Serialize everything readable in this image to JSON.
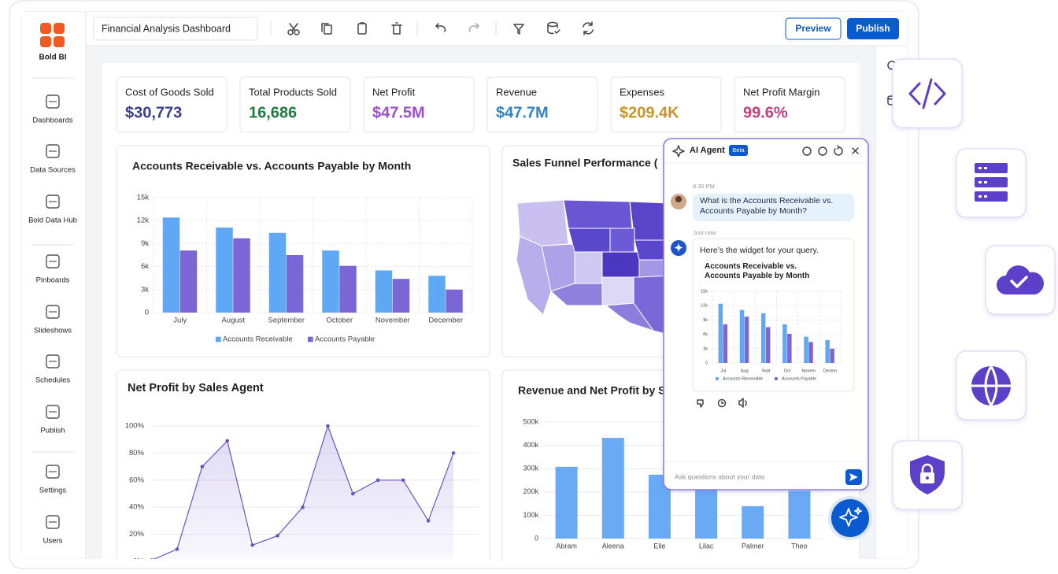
{
  "app": {
    "logo": "Bold BI",
    "nav": [
      "Dashboards",
      "Data Sources",
      "Bold Data Hub",
      "Pinboards",
      "Slideshows",
      "Schedules",
      "Publish",
      "Settings",
      "Users"
    ],
    "dashboard_name": "Financial Analysis Dashboard",
    "buttons": [
      "Preview",
      "Publish"
    ]
  },
  "kpis": [
    {
      "label": "Cost of Goods Sold",
      "value": "$30,773",
      "color": "#3a3f8c"
    },
    {
      "label": "Total Products Sold",
      "value": "16,686",
      "color": "#1f7a3f"
    },
    {
      "label": "Net Profit",
      "value": "$47.5M",
      "color": "#9b4fcf"
    },
    {
      "label": "Revenue",
      "value": "$47.7M",
      "color": "#2f86c6"
    },
    {
      "label": "Expenses",
      "value": "$209.4K",
      "color": "#c8952b"
    },
    {
      "label": "Net Profit Margin",
      "value": "99.6%",
      "color": "#c2407a"
    }
  ],
  "chart_data": [
    {
      "type": "bar",
      "title": "Accounts Receivable vs. Accounts Payable by Month",
      "categories": [
        "July",
        "August",
        "September",
        "October",
        "November",
        "December"
      ],
      "series": [
        {
          "name": "Accounts Receivable",
          "color": "#5ea8f5",
          "values": [
            12400,
            11100,
            10400,
            8100,
            5500,
            4800
          ]
        },
        {
          "name": "Accounts Payable",
          "color": "#7b66d6",
          "values": [
            8100,
            9700,
            7500,
            6100,
            4400,
            3000
          ]
        }
      ],
      "ylim": [
        0,
        15000
      ],
      "yticks": [
        0,
        {
          "value": 3000,
          "label": "3k"
        },
        {
          "value": 6000,
          "label": "6k"
        },
        {
          "value": 9000,
          "label": "9k"
        },
        {
          "value": 12000,
          "label": "12k"
        },
        {
          "value": 15000,
          "label": "15k"
        }
      ],
      "grid": true
    },
    {
      "type": "map",
      "title": "Sales Funnel Performance ("
    },
    {
      "type": "line",
      "title": "Net Profit by Sales Agent",
      "categories": [
        null,
        null,
        null,
        null,
        null,
        null,
        null,
        null,
        null,
        null,
        null,
        null,
        null
      ],
      "values": [
        1,
        9,
        70,
        89,
        12,
        19,
        40,
        100,
        50,
        60,
        60,
        30,
        80
      ],
      "color": "#6a55c2",
      "ylim": [
        0,
        100
      ],
      "yticks": [
        {
          "value": 0,
          "label": "0%"
        },
        {
          "value": 20,
          "label": "20%"
        },
        {
          "value": 40,
          "label": "40%"
        },
        {
          "value": 60,
          "label": "60%"
        },
        {
          "value": 80,
          "label": "80%"
        },
        {
          "value": 100,
          "label": "100%"
        }
      ],
      "grid": true
    },
    {
      "type": "bar",
      "title": "Revenue and Net Profit by S",
      "categories": [
        "Abram",
        "Aleena",
        "Elle",
        "Lilac",
        "Palmer",
        "Theo"
      ],
      "series": [
        {
          "name": null,
          "color": "#6aa9f4",
          "values": [
            308000,
            432000,
            274000,
            215000,
            139000,
            205000
          ]
        }
      ],
      "ylim": [
        0,
        500000
      ],
      "yticks": [
        0,
        {
          "value": 100000,
          "label": "100k"
        },
        {
          "value": 200000,
          "label": "200k"
        },
        {
          "value": 300000,
          "label": "300k"
        },
        {
          "value": 400000,
          "label": "400k"
        },
        {
          "value": 500000,
          "label": "500k"
        }
      ],
      "grid": true
    },
    {
      "type": "bar",
      "title": "Accounts Receivable vs. Accounts Payable by Month",
      "categories": [
        "Jul",
        "Aug",
        "Sept",
        "Oct",
        "Novem",
        "Decem"
      ],
      "series": [
        {
          "name": "Accounts Receivable",
          "color": "#5ea8f5",
          "values": [
            12400,
            11100,
            10400,
            8100,
            5500,
            4800
          ]
        },
        {
          "name": "Accounts Payable",
          "color": "#7b66d6",
          "values": [
            8100,
            9700,
            7500,
            6100,
            4400,
            3000
          ]
        }
      ],
      "ylim": [
        0,
        15000
      ],
      "yticks": [
        0,
        {
          "value": 3000,
          "label": "3k"
        },
        {
          "value": 6000,
          "label": "6k"
        },
        {
          "value": 9000,
          "label": "9k"
        },
        {
          "value": 12000,
          "label": "12k"
        },
        {
          "value": 15000,
          "label": "15k"
        }
      ],
      "grid": true
    }
  ],
  "ai_agent": {
    "title": "AI Agent",
    "badge": "Beta",
    "question_time": "8:30 PM",
    "question": "What is the Accounts Receivable vs. Accounts Payable by Month?",
    "answer_time": "Just now",
    "answer": "Here’s the widget for your query.",
    "input_placeholder": "Ask questions about your data"
  }
}
